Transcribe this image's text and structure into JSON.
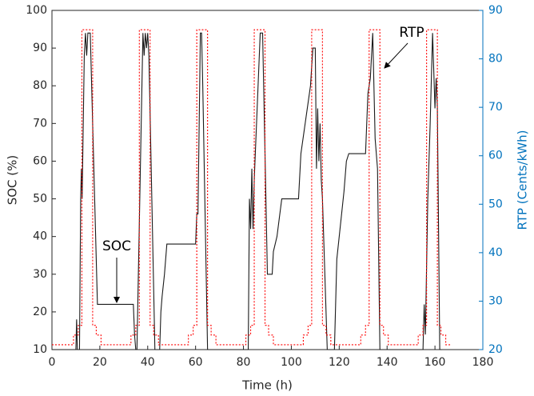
{
  "chart_data": {
    "type": "line",
    "xlabel": "Time (h)",
    "ylabel": "SOC (%)",
    "y2label": "RTP (Cents/kWh)",
    "xlim": [
      0,
      180
    ],
    "xticks": [
      0,
      20,
      40,
      60,
      80,
      100,
      120,
      140,
      160,
      180
    ],
    "ylim": [
      10,
      100
    ],
    "yticks": [
      10,
      20,
      30,
      40,
      50,
      60,
      70,
      80,
      90,
      100
    ],
    "y2lim": [
      20,
      90
    ],
    "y2ticks": [
      20,
      30,
      40,
      50,
      60,
      70,
      80,
      90
    ],
    "y2color": "#0072bd",
    "grid": false,
    "annotations": [
      "SOC",
      "RTP"
    ],
    "series": [
      {
        "name": "SOC",
        "color": "#1a1a1a",
        "axis": "y",
        "x": [
          0,
          10,
          10.3,
          10.6,
          11.5,
          12,
          12.3,
          12.6,
          13.5,
          14,
          14.5,
          15,
          15.5,
          16,
          19,
          22,
          34,
          34.5,
          35,
          35.5,
          38,
          38.5,
          39,
          39.5,
          40,
          40.5,
          43,
          45,
          45.5,
          46,
          47,
          48,
          60,
          60.5,
          61,
          62,
          62.5,
          63,
          65,
          82,
          82.5,
          83,
          83.5,
          84,
          84.5,
          87,
          88,
          90,
          92,
          92.5,
          94,
          95,
          96,
          103,
          104,
          108,
          109,
          110,
          110.5,
          111,
          111.5,
          112,
          112.5,
          113,
          115,
          118,
          119,
          121,
          122,
          123,
          124,
          131,
          132,
          133,
          134,
          135,
          136,
          137,
          155,
          155.5,
          156,
          157,
          158,
          159,
          160,
          160.5,
          161,
          162,
          163
        ],
        "values": [
          10,
          10,
          18,
          10,
          10,
          50,
          58,
          50,
          88,
          94,
          88,
          94,
          94,
          94,
          22,
          22,
          22,
          14,
          10,
          10,
          94,
          88,
          94,
          90,
          94,
          88,
          10,
          10,
          20,
          24,
          30,
          38,
          38,
          46,
          46,
          94,
          94,
          80,
          10,
          10,
          50,
          42,
          58,
          42,
          55,
          94,
          94,
          30,
          30,
          36,
          40,
          45,
          50,
          50,
          62,
          80,
          90,
          90,
          58,
          74,
          60,
          70,
          55,
          50,
          10,
          10,
          34,
          46,
          52,
          60,
          62,
          62,
          78,
          82,
          94,
          66,
          58,
          10,
          10,
          22,
          14,
          50,
          70,
          94,
          74,
          82,
          74,
          10,
          10
        ]
      },
      {
        "name": "RTP",
        "color": "#ff0000",
        "axis": "y2",
        "dashed": true,
        "x": [
          0,
          9,
          9,
          11,
          11,
          12.5,
          12.5,
          17,
          17,
          18.5,
          18.5,
          20.5,
          20.5,
          33,
          33,
          35,
          35,
          36.5,
          36.5,
          41,
          41,
          42.5,
          42.5,
          44.5,
          44.5,
          57,
          57,
          59,
          59,
          60.5,
          60.5,
          65,
          65,
          66.5,
          66.5,
          68.5,
          68.5,
          81,
          81,
          83,
          83,
          84.5,
          84.5,
          89,
          89,
          90.5,
          90.5,
          92.5,
          92.5,
          105,
          105,
          107,
          107,
          108.5,
          108.5,
          113,
          113,
          114.5,
          114.5,
          116.5,
          116.5,
          129,
          129,
          131,
          131,
          132.5,
          132.5,
          137,
          137,
          138.5,
          138.5,
          140.5,
          140.5,
          153,
          153,
          155,
          155,
          156.5,
          156.5,
          161,
          161,
          162.5,
          162.5,
          164.5,
          164.5,
          167
        ],
        "values": [
          21,
          21,
          23,
          23,
          25,
          25,
          86,
          86,
          25,
          25,
          23,
          23,
          21,
          21,
          23,
          23,
          25,
          25,
          86,
          86,
          25,
          25,
          23,
          23,
          21,
          21,
          23,
          23,
          25,
          25,
          86,
          86,
          25,
          25,
          23,
          23,
          21,
          21,
          23,
          23,
          25,
          25,
          86,
          86,
          25,
          25,
          23,
          23,
          21,
          21,
          23,
          23,
          25,
          25,
          86,
          86,
          25,
          25,
          23,
          23,
          21,
          21,
          23,
          23,
          25,
          25,
          86,
          86,
          25,
          25,
          23,
          23,
          21,
          21,
          23,
          23,
          25,
          25,
          86,
          86,
          25,
          25,
          23,
          23,
          21,
          21
        ]
      }
    ]
  }
}
